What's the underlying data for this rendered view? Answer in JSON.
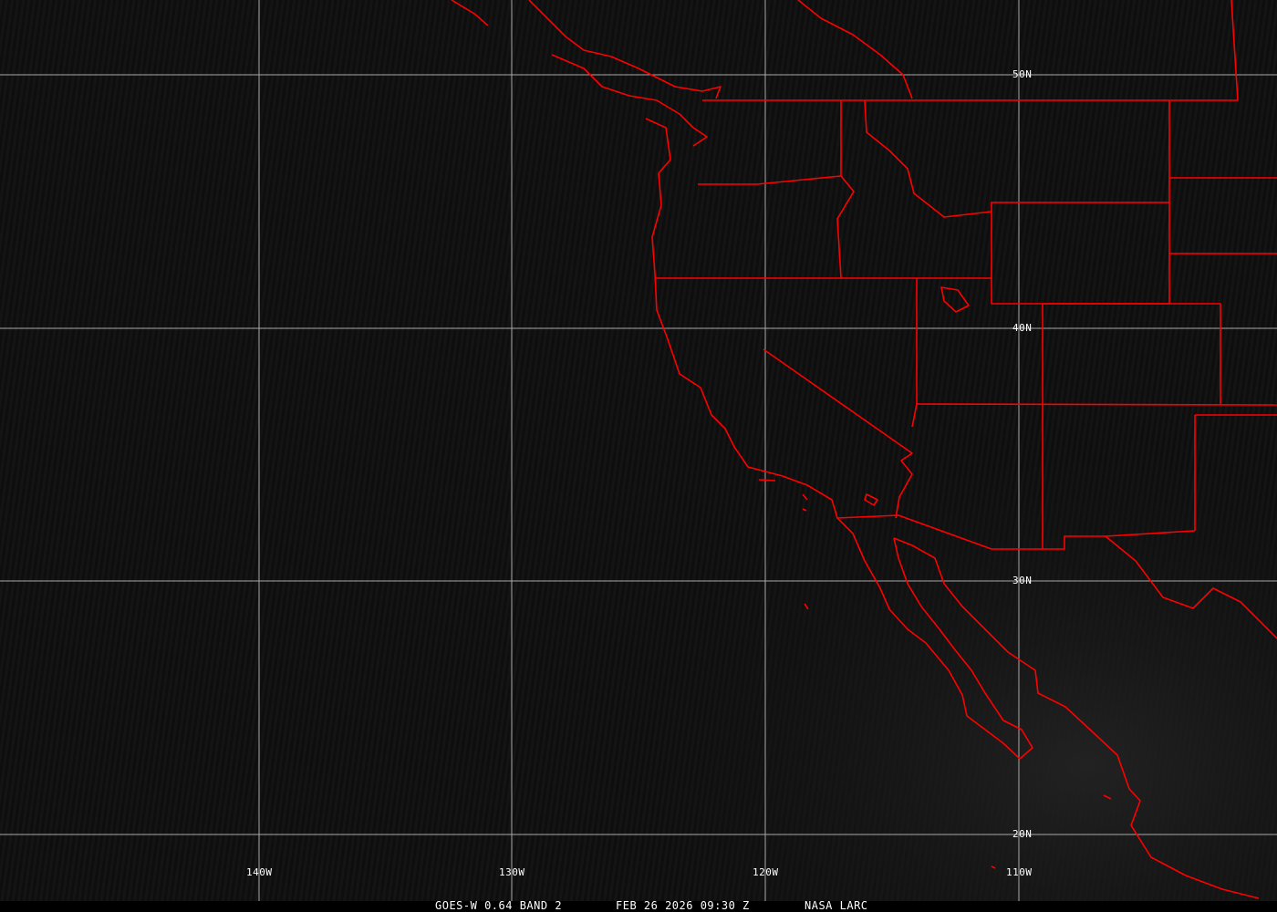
{
  "map": {
    "grid_color": "#a8a8a8",
    "boundary_color": "#ff0000",
    "background_color": "#0e0e0e",
    "latitude_labels": [
      "50N",
      "40N",
      "30N",
      "20N"
    ],
    "longitude_labels": [
      "140W",
      "130W",
      "120W",
      "110W"
    ]
  },
  "footer": {
    "satellite": "GOES-W 0.64 BAND 2",
    "timestamp": "FEB 26 2026 09:30 Z",
    "source": "NASA LARC"
  }
}
